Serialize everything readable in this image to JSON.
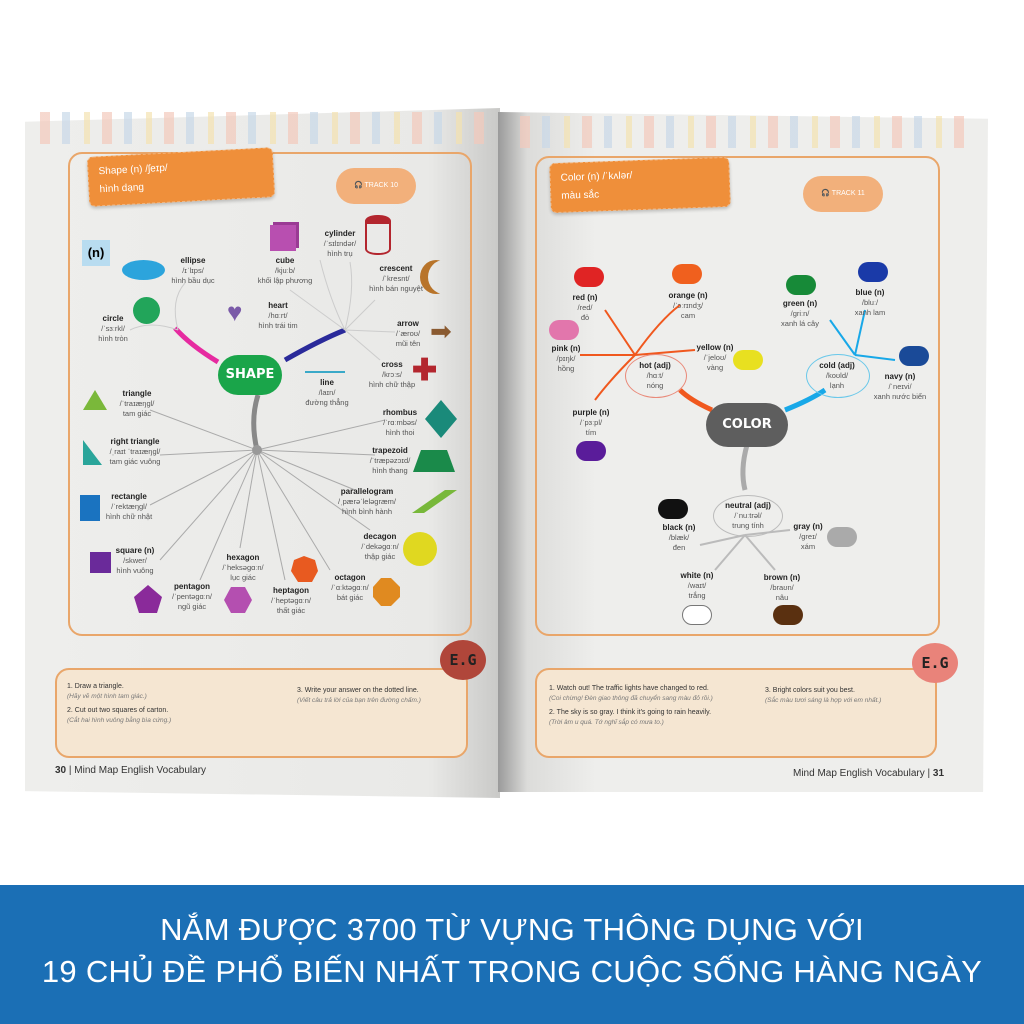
{
  "left_page": {
    "tag_title": "Shape (n) /ʃeɪp/",
    "tag_sub": "hình dạng",
    "track": "TRACK 10",
    "pos_badge": "(n)",
    "center": "SHAPE",
    "items": [
      {
        "name": "ellipse",
        "ipa": "/ɪˈlɪps/",
        "vi": "hình bầu dục"
      },
      {
        "name": "circle",
        "ipa": "/ˈsɜːrkl/",
        "vi": "hình tròn"
      },
      {
        "name": "cube",
        "ipa": "/kjuːb/",
        "vi": "khối lập phương"
      },
      {
        "name": "heart",
        "ipa": "/hɑːrt/",
        "vi": "hình trái tim"
      },
      {
        "name": "cylinder",
        "ipa": "/ˈsɪlɪndər/",
        "vi": "hình trụ"
      },
      {
        "name": "crescent",
        "ipa": "/ˈkresnt/",
        "vi": "hình bán nguyệt"
      },
      {
        "name": "arrow",
        "ipa": "/ˈæroʊ/",
        "vi": "mũi tên"
      },
      {
        "name": "cross",
        "ipa": "/krɔːs/",
        "vi": "hình chữ thập"
      },
      {
        "name": "line",
        "ipa": "/laɪn/",
        "vi": "đường thẳng"
      },
      {
        "name": "triangle",
        "ipa": "/ˈtraɪæŋgl/",
        "vi": "tam giác"
      },
      {
        "name": "right triangle",
        "ipa": "/ˌraɪt ˈtraɪæŋgl/",
        "vi": "tam giác vuông"
      },
      {
        "name": "rectangle",
        "ipa": "/ˈrektæŋgl/",
        "vi": "hình chữ nhật"
      },
      {
        "name": "square (n)",
        "ipa": "/skwer/",
        "vi": "hình vuông"
      },
      {
        "name": "pentagon",
        "ipa": "/ˈpentəgɑːn/",
        "vi": "ngũ giác"
      },
      {
        "name": "hexagon",
        "ipa": "/ˈheksəgɑːn/",
        "vi": "lục giác"
      },
      {
        "name": "heptagon",
        "ipa": "/ˈheptəgɑːn/",
        "vi": "thất giác"
      },
      {
        "name": "octagon",
        "ipa": "/ˈɑːktəgɑːn/",
        "vi": "bát giác"
      },
      {
        "name": "decagon",
        "ipa": "/ˈdekəgɑːn/",
        "vi": "thập giác"
      },
      {
        "name": "parallelogram",
        "ipa": "/ˌpærəˈleləgræm/",
        "vi": "hình bình hành"
      },
      {
        "name": "trapezoid",
        "ipa": "/ˈtræpəzɔɪd/",
        "vi": "hình thang"
      },
      {
        "name": "rhombus",
        "ipa": "/ˈrɑːmbəs/",
        "vi": "hình thoi"
      }
    ],
    "examples": [
      {
        "num": "1.",
        "en": "Draw a triangle.",
        "vi": "(Hãy vẽ một hình tam giác.)"
      },
      {
        "num": "2.",
        "en": "Cut out two squares of carton.",
        "vi": "(Cắt hai hình vuông bằng bìa cứng.)"
      },
      {
        "num": "3.",
        "en": "Write your answer on the dotted line.",
        "vi": "(Viết câu trả lời của bạn trên đường chấm.)"
      }
    ],
    "eg": "E.G",
    "page_num": "30",
    "footer": "Mind Map English Vocabulary"
  },
  "right_page": {
    "tag_title": "Color (n) /ˈkʌlər/",
    "tag_sub": "màu sắc",
    "track": "TRACK 11",
    "center": "COLOR",
    "groups": {
      "hot": {
        "name": "hot (adj)",
        "ipa": "/hɑːt/",
        "vi": "nóng"
      },
      "cold": {
        "name": "cold (adj)",
        "ipa": "/koʊld/",
        "vi": "lạnh"
      },
      "neutral": {
        "name": "neutral (adj)",
        "ipa": "/ˈnuːtrəl/",
        "vi": "trung tính"
      }
    },
    "items": [
      {
        "name": "red (n)",
        "ipa": "/red/",
        "vi": "đỏ",
        "color": "#e02424"
      },
      {
        "name": "orange (n)",
        "ipa": "/ˈɔːrɪndʒ/",
        "vi": "cam",
        "color": "#f0601e"
      },
      {
        "name": "pink (n)",
        "ipa": "/pɪŋk/",
        "vi": "hồng",
        "color": "#e276ac"
      },
      {
        "name": "yellow (n)",
        "ipa": "/ˈjeloʊ/",
        "vi": "vàng",
        "color": "#e8e020"
      },
      {
        "name": "purple (n)",
        "ipa": "/ˈpɜːpl/",
        "vi": "tím",
        "color": "#5a1c9a"
      },
      {
        "name": "green (n)",
        "ipa": "/griːn/",
        "vi": "xanh lá cây",
        "color": "#178a38"
      },
      {
        "name": "blue (n)",
        "ipa": "/bluː/",
        "vi": "xanh lam",
        "color": "#1a3aa8"
      },
      {
        "name": "navy (n)",
        "ipa": "/ˈneɪvi/",
        "vi": "xanh nước biển",
        "color": "#1a4a98"
      },
      {
        "name": "black (n)",
        "ipa": "/blæk/",
        "vi": "đen",
        "color": "#111111"
      },
      {
        "name": "gray (n)",
        "ipa": "/greɪ/",
        "vi": "xám",
        "color": "#aaaaaa"
      },
      {
        "name": "white (n)",
        "ipa": "/waɪt/",
        "vi": "trắng",
        "color": "#ffffff"
      },
      {
        "name": "brown (n)",
        "ipa": "/braʊn/",
        "vi": "nâu",
        "color": "#5a3010"
      }
    ],
    "examples": [
      {
        "num": "1.",
        "en": "Watch out! The traffic lights have changed to red.",
        "vi": "(Coi chừng! Đèn giao thông đã chuyển sang màu đỏ rồi.)"
      },
      {
        "num": "2.",
        "en": "The sky is so gray. I think it's going to rain heavily.",
        "vi": "(Trời âm u quá. Tớ nghĩ sắp có mưa to.)"
      },
      {
        "num": "3.",
        "en": "Bright colors suit you best.",
        "vi": "(Sắc màu tươi sáng là hợp với em nhất.)"
      }
    ],
    "eg": "E.G",
    "page_num": "31",
    "footer": "Mind Map English Vocabulary"
  },
  "banner": {
    "line1": "NẮM ĐƯỢC 3700 TỪ VỰNG THÔNG DỤNG VỚI",
    "line2": "19 CHỦ ĐỀ PHỔ BIẾN NHẤT TRONG CUỘC SỐNG HÀNG NGÀY",
    "color": "#1b6fb5"
  }
}
